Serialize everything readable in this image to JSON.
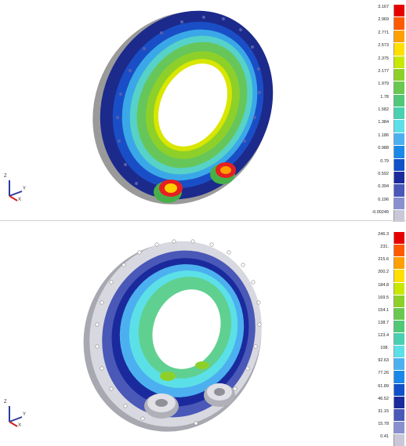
{
  "top_panel": {
    "legend": {
      "labels": [
        "3.167",
        "2.969",
        "2.771",
        "2.573",
        "2.375",
        "2.177",
        "1.979",
        "1.78",
        "1.582",
        "1.384",
        "1.186",
        "0.988",
        "0.79",
        "0.592",
        "0.394",
        "0.196",
        "-0.00249"
      ],
      "colors": [
        "#e60000",
        "#ff5a00",
        "#ffa000",
        "#ffe000",
        "#c8e800",
        "#8ed02a",
        "#68c850",
        "#50c878",
        "#48d0b0",
        "#5ce0e8",
        "#4cb0f0",
        "#1a88e8",
        "#1050c8",
        "#1a2a9c",
        "#4a58b8",
        "#8890d0",
        "#c8c8d8"
      ]
    },
    "triad": {
      "z": "Z",
      "y": "Y",
      "x": "X"
    }
  },
  "bottom_panel": {
    "legend": {
      "labels": [
        "246.3",
        "231.",
        "215.6",
        "200.2",
        "184.8",
        "169.5",
        "154.1",
        "138.7",
        "123.4",
        "108.",
        "92.63",
        "77.26",
        "61.89",
        "46.52",
        "31.15",
        "15.78",
        "0.41"
      ],
      "colors": [
        "#e60000",
        "#ff5a00",
        "#ffa000",
        "#ffe000",
        "#c8e800",
        "#8ed02a",
        "#68c850",
        "#50c878",
        "#48d0b0",
        "#5ce0e8",
        "#4cb0f0",
        "#1a88e8",
        "#1050c8",
        "#1a2a9c",
        "#4a58b8",
        "#8890d0",
        "#c8c8d8"
      ]
    },
    "triad": {
      "z": "Z",
      "y": "Y",
      "x": "X"
    }
  }
}
